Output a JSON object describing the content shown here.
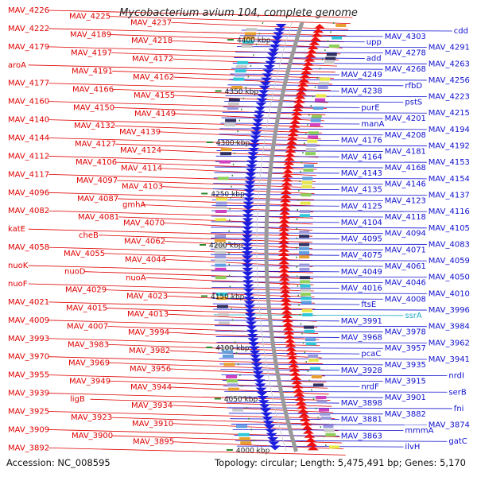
{
  "title": "Mycobacterium avium 104, complete genome",
  "footer": {
    "accession": "Accession: NC_008595",
    "topology": "Topology: circular; Length: 5,475,491 bp; Genes: 5,170"
  },
  "colors": {
    "left_labels": "#e00000",
    "right_labels": "#1010d0",
    "rna_label": "#20a8c8",
    "backbone": "#9a9a9a",
    "tick": "#2a8a2a"
  },
  "scale_ticks": [
    "4400 kbp",
    "4350 kbp",
    "4300 kbp",
    "4250 kbp",
    "4200 kbp",
    "4150 kbp",
    "4100 kbp",
    "4050 kbp",
    "4000 kbp"
  ],
  "left_labels": [
    "MAV_4226",
    "MAV_4225",
    "MAV_4237",
    "MAV_4222",
    "MAV_4189",
    "MAV_4218",
    "MAV_4179",
    "MAV_4197",
    "MAV_4172",
    "aroA",
    "MAV_4191",
    "MAV_4162",
    "MAV_4177",
    "MAV_4166",
    "MAV_4155",
    "MAV_4160",
    "MAV_4150",
    "MAV_4149",
    "MAV_4140",
    "MAV_4132",
    "MAV_4139",
    "MAV_4144",
    "MAV_4127",
    "MAV_4124",
    "MAV_4112",
    "MAV_4106",
    "MAV_4114",
    "MAV_4117",
    "MAV_4097",
    "MAV_4103",
    "MAV_4096",
    "MAV_4087",
    "gmhA",
    "MAV_4082",
    "MAV_4081",
    "MAV_4070",
    "katE",
    "cheB",
    "MAV_4062",
    "MAV_4058",
    "MAV_4055",
    "MAV_4044",
    "nuoK",
    "nuoD",
    "nuoA",
    "nuoF",
    "MAV_4029",
    "MAV_4023",
    "MAV_4021",
    "MAV_4015",
    "MAV_4013",
    "MAV_4009",
    "MAV_4007",
    "MAV_3994",
    "MAV_3993",
    "MAV_3983",
    "MAV_3982",
    "MAV_3970",
    "MAV_3969",
    "MAV_3956",
    "MAV_3955",
    "MAV_3949",
    "MAV_3944",
    "MAV_3939",
    "ligB",
    "MAV_3934",
    "MAV_3925",
    "MAV_3923",
    "MAV_3910",
    "MAV_3909",
    "MAV_3900",
    "MAV_3895",
    "MAV_3892"
  ],
  "right_labels": [
    "cdd",
    "MAV_4303",
    "upp",
    "MAV_4291",
    "MAV_4278",
    "add",
    "MAV_4263",
    "MAV_4268",
    "MAV_4249",
    "MAV_4256",
    "rfbD",
    "MAV_4238",
    "MAV_4223",
    "pstS",
    "purE",
    "MAV_4215",
    "MAV_4201",
    "manA",
    "MAV_4194",
    "MAV_4208",
    "MAV_4176",
    "MAV_4192",
    "MAV_4181",
    "MAV_4164",
    "MAV_4153",
    "MAV_4168",
    "MAV_4143",
    "MAV_4154",
    "MAV_4146",
    "MAV_4135",
    "MAV_4137",
    "MAV_4123",
    "MAV_4125",
    "MAV_4116",
    "MAV_4118",
    "MAV_4104",
    "MAV_4105",
    "MAV_4094",
    "MAV_4095",
    "MAV_4083",
    "MAV_4071",
    "MAV_4075",
    "MAV_4059",
    "MAV_4061",
    "MAV_4049",
    "MAV_4050",
    "MAV_4046",
    "MAV_4016",
    "MAV_4010",
    "MAV_4008",
    "ftsE",
    "MAV_3996",
    "ssrA",
    "MAV_3991",
    "MAV_3984",
    "MAV_3978",
    "MAV_3968",
    "MAV_3962",
    "MAV_3957",
    "pcaC",
    "MAV_3941",
    "MAV_3935",
    "MAV_3928",
    "nrdI",
    "MAV_3915",
    "nrdF",
    "serB",
    "MAV_3901",
    "MAV_3898",
    "fni",
    "MAV_3882",
    "MAV_3881",
    "MAV_3874",
    "mmmA",
    "MAV_3863",
    "gatC",
    "ilvH"
  ]
}
